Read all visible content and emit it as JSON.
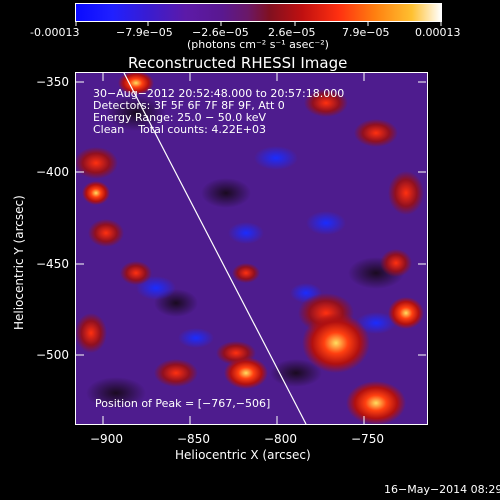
{
  "colorbar": {
    "ticks": [
      "-0.00013",
      "−7.9e−05",
      "−2.6e−05",
      "2.6e−05",
      "7.9e−05",
      "0.00013"
    ],
    "units_label": "(photons cm⁻² s⁻¹ asec⁻²)"
  },
  "plot": {
    "title": "Reconstructed RHESSI Image",
    "info_lines": [
      "30−Aug−2012 20:52:48.000 to 20:57:18.000",
      "Detectors: 3F 5F 6F 7F 8F 9F, Att 0",
      "Energy Range: 25.0 − 50.0 keV",
      "Clean    Total counts: 4.22E+03"
    ],
    "peak_label": "Position of Peak = [−767,−506]",
    "xlabel": "Heliocentric X (arcsec)",
    "ylabel": "Heliocentric Y (arcsec)",
    "x_ticks": [
      "−900",
      "−850",
      "−800",
      "−750"
    ],
    "y_ticks": [
      "−350",
      "−400",
      "−450",
      "−500"
    ]
  },
  "footer": {
    "date": "16−May−2014 08:29"
  }
}
